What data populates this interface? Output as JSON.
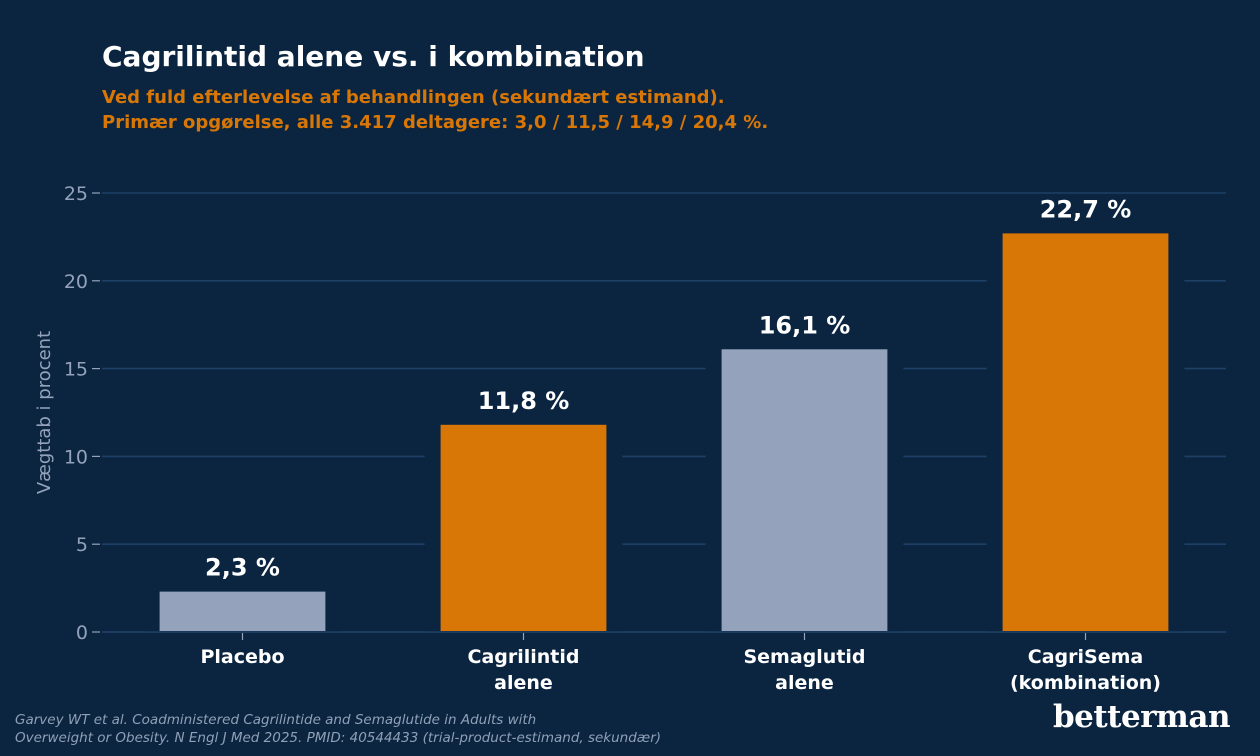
{
  "title": "Cagrilintid alene vs. i kombination",
  "subtitle": [
    "Ved fuld efterlevelse af behandlingen (sekundært estimand).",
    "Primær opgørelse, alle 3.417 deltagere: 3,0 / 11,5 / 14,9 / 20,4 %."
  ],
  "source": [
    "Garvey WT et al. Coadministered Cagrilintide and Semaglutide in Adults with",
    "Overweight or Obesity. N Engl J Med 2025. PMID: 40544433 (trial-product-estimand, sekundær)"
  ],
  "logo": "betterman",
  "colors": {
    "background": "#0b2540",
    "grid": "#1e4066",
    "highlight": "#d97706",
    "muted": "#94a3bb",
    "tick": "#94a3bb",
    "label": "#ffffff"
  },
  "chart_data": {
    "type": "bar",
    "categories": [
      [
        "Placebo"
      ],
      [
        "Cagrilintid",
        "alene"
      ],
      [
        "Semaglutid",
        "alene"
      ],
      [
        "CagriSema",
        "(kombination)"
      ]
    ],
    "values": [
      2.3,
      11.8,
      16.1,
      22.7
    ],
    "data_labels": [
      "2,3 %",
      "11,8 %",
      "16,1 %",
      "22,7 %"
    ],
    "bar_colors": [
      "muted",
      "highlight",
      "muted",
      "highlight"
    ],
    "ylabel": "Vægttab i procent",
    "ylim": [
      0,
      25
    ],
    "yticks": [
      0,
      5,
      10,
      15,
      20,
      25
    ],
    "grid": true
  }
}
